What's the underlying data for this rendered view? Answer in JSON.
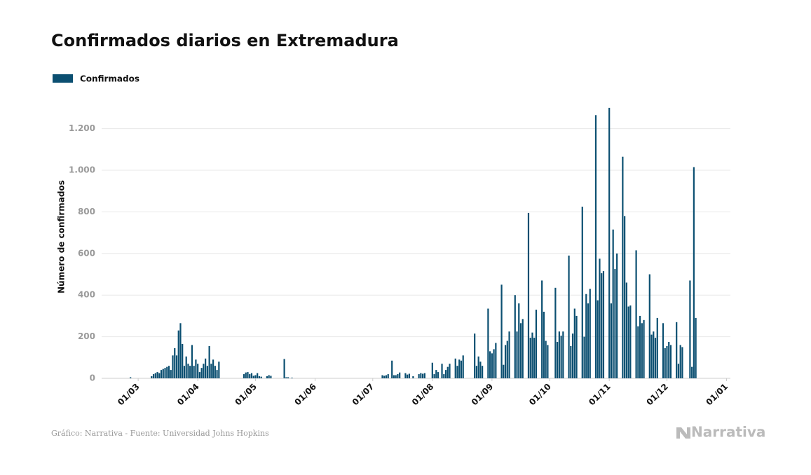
{
  "chart_data": {
    "type": "bar",
    "title": "Confirmados diarios en Extremadura",
    "y_label": "Número de confirmados",
    "source": "Gráfico: Narrativa - Fuente: Universidad Johns Hopkins",
    "brand": "Narrativa",
    "legend": "top-left",
    "grid": true,
    "x": [
      "26/02",
      "08/03",
      "09/03",
      "10/03",
      "11/03",
      "12/03",
      "13/03",
      "14/03",
      "15/03",
      "16/03",
      "17/03",
      "18/03",
      "19/03",
      "20/03",
      "21/03",
      "22/03",
      "23/03",
      "24/03",
      "25/03",
      "26/03",
      "27/03",
      "28/03",
      "29/03",
      "30/03",
      "31/03",
      "01/04",
      "02/04",
      "03/04",
      "04/04",
      "05/04",
      "06/04",
      "07/04",
      "08/04",
      "09/04",
      "10/04",
      "11/04",
      "12/04",
      "25/04",
      "26/04",
      "27/04",
      "28/04",
      "29/04",
      "30/04",
      "01/05",
      "02/05",
      "03/05",
      "04/05",
      "07/05",
      "08/05",
      "09/05",
      "16/05",
      "17/05",
      "18/05",
      "20/05",
      "06/07",
      "07/07",
      "08/07",
      "09/07",
      "11/07",
      "12/07",
      "13/07",
      "14/07",
      "15/07",
      "18/07",
      "19/07",
      "20/07",
      "22/07",
      "25/07",
      "26/07",
      "27/07",
      "28/07",
      "01/08",
      "02/08",
      "03/08",
      "04/08",
      "06/08",
      "07/08",
      "08/08",
      "09/08",
      "10/08",
      "13/08",
      "14/08",
      "15/08",
      "16/08",
      "17/08",
      "23/08",
      "24/08",
      "25/08",
      "26/08",
      "27/08",
      "30/08",
      "31/08",
      "01/09",
      "02/09",
      "03/09",
      "06/09",
      "07/09",
      "08/09",
      "09/09",
      "10/09",
      "13/09",
      "14/09",
      "15/09",
      "16/09",
      "17/09",
      "20/09",
      "21/09",
      "22/09",
      "23/09",
      "24/09",
      "27/09",
      "28/09",
      "29/09",
      "30/09",
      "04/10",
      "05/10",
      "06/10",
      "07/10",
      "08/10",
      "11/10",
      "12/10",
      "13/10",
      "14/10",
      "15/10",
      "18/10",
      "19/10",
      "20/10",
      "21/10",
      "22/10",
      "25/10",
      "26/10",
      "27/10",
      "28/10",
      "29/10",
      "01/11",
      "02/11",
      "03/11",
      "04/11",
      "05/11",
      "08/11",
      "09/11",
      "10/11",
      "11/11",
      "12/11",
      "15/11",
      "16/11",
      "17/11",
      "18/11",
      "19/11",
      "22/11",
      "23/11",
      "24/11",
      "25/11",
      "26/11",
      "29/11",
      "30/11",
      "01/12",
      "02/12",
      "03/12",
      "06/12",
      "07/12",
      "08/12",
      "09/12",
      "13/12",
      "14/12",
      "15/12",
      "16/12"
    ],
    "series": [
      {
        "name": "Confirmados",
        "color": "#0b4f71",
        "values": [
          5,
          10,
          20,
          25,
          30,
          25,
          40,
          45,
          50,
          55,
          60,
          40,
          110,
          145,
          110,
          230,
          265,
          165,
          60,
          105,
          70,
          60,
          160,
          60,
          90,
          70,
          30,
          50,
          70,
          95,
          60,
          155,
          70,
          90,
          60,
          40,
          80,
          20,
          28,
          30,
          20,
          25,
          12,
          15,
          25,
          10,
          8,
          10,
          15,
          12,
          93,
          5,
          5,
          3,
          15,
          12,
          15,
          20,
          85,
          15,
          15,
          20,
          28,
          25,
          18,
          22,
          10,
          20,
          25,
          22,
          25,
          75,
          20,
          40,
          30,
          70,
          20,
          40,
          55,
          70,
          95,
          60,
          90,
          85,
          110,
          215,
          60,
          105,
          80,
          60,
          335,
          130,
          120,
          140,
          170,
          450,
          65,
          160,
          180,
          225,
          400,
          225,
          360,
          265,
          285,
          795,
          195,
          220,
          195,
          330,
          470,
          320,
          180,
          160,
          435,
          175,
          225,
          205,
          225,
          590,
          155,
          215,
          335,
          300,
          825,
          200,
          405,
          360,
          430,
          1265,
          375,
          575,
          505,
          515,
          1300,
          360,
          715,
          525,
          600,
          1065,
          780,
          460,
          345,
          350,
          615,
          250,
          300,
          265,
          280,
          500,
          210,
          225,
          195,
          290,
          265,
          145,
          155,
          175,
          160,
          270,
          70,
          160,
          150,
          470,
          55,
          1015,
          290
        ]
      }
    ],
    "xlim": [
      "11/02",
      "03/01"
    ],
    "xticks": [
      "01/03",
      "01/04",
      "01/05",
      "01/06",
      "01/07",
      "01/08",
      "01/09",
      "01/10",
      "01/11",
      "01/12",
      "01/01"
    ],
    "ylim": [
      0,
      1330
    ],
    "yticks": [
      0,
      200,
      400,
      600,
      800,
      {
        "value": 1000,
        "label": "1.000"
      },
      {
        "value": 1200,
        "label": "1.200"
      }
    ]
  }
}
